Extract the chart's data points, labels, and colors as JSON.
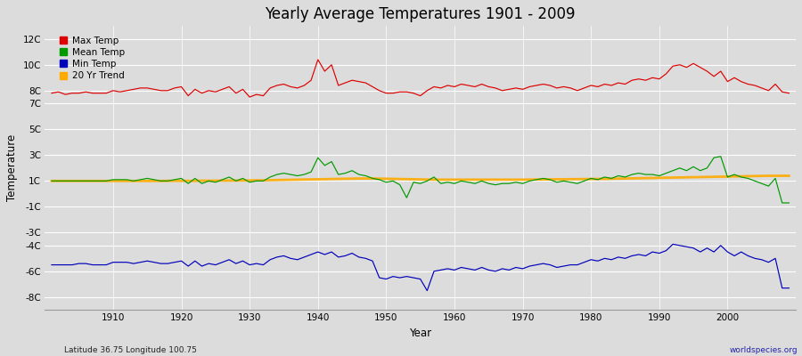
{
  "title": "Yearly Average Temperatures 1901 - 2009",
  "xlabel": "Year",
  "ylabel": "Temperature",
  "x_start": 1901,
  "x_end": 2009,
  "ylim": [
    -9,
    13
  ],
  "xlim": [
    1900,
    2010
  ],
  "ytick_positions": [
    -8,
    -6,
    -4,
    -3,
    -1,
    1,
    3,
    5,
    7,
    8,
    10,
    12
  ],
  "ytick_labels": [
    "-8C",
    "-6C",
    "-4C",
    "-3C",
    "-1C",
    "1C",
    "3C",
    "5C",
    "7C",
    "8C",
    "10C",
    "12C"
  ],
  "xtick_positions": [
    1910,
    1920,
    1930,
    1940,
    1950,
    1960,
    1970,
    1980,
    1990,
    2000
  ],
  "background_color": "#dcdcdc",
  "plot_bg_color": "#dcdcdc",
  "grid_color": "#ffffff",
  "line_colors": {
    "max": "#dd0000",
    "mean": "#009900",
    "min": "#0000bb",
    "trend": "#ffaa00"
  },
  "legend_labels": [
    "Max Temp",
    "Mean Temp",
    "Min Temp",
    "20 Yr Trend"
  ],
  "footer_left": "Latitude 36.75 Longitude 100.75",
  "footer_right": "worldspecies.org",
  "max_temps": [
    7.8,
    7.9,
    7.7,
    7.8,
    7.8,
    7.9,
    7.8,
    7.8,
    7.8,
    8.0,
    7.9,
    8.0,
    8.1,
    8.2,
    8.2,
    8.1,
    8.0,
    8.0,
    8.2,
    8.3,
    7.6,
    8.1,
    7.8,
    8.0,
    7.9,
    8.1,
    8.3,
    7.8,
    8.1,
    7.5,
    7.7,
    7.6,
    8.2,
    8.4,
    8.5,
    8.3,
    8.2,
    8.4,
    8.8,
    10.4,
    9.5,
    10.0,
    8.4,
    8.6,
    8.8,
    8.7,
    8.6,
    8.3,
    8.0,
    7.8,
    7.8,
    7.9,
    7.9,
    7.8,
    7.6,
    8.0,
    8.3,
    8.2,
    8.4,
    8.3,
    8.5,
    8.4,
    8.3,
    8.5,
    8.3,
    8.2,
    8.0,
    8.1,
    8.2,
    8.1,
    8.3,
    8.4,
    8.5,
    8.4,
    8.2,
    8.3,
    8.2,
    8.0,
    8.2,
    8.4,
    8.3,
    8.5,
    8.4,
    8.6,
    8.5,
    8.8,
    8.9,
    8.8,
    9.0,
    8.9,
    9.3,
    9.9,
    10.0,
    9.8,
    10.1,
    9.8,
    9.5,
    9.1,
    9.5,
    8.7,
    9.0,
    8.7,
    8.5,
    8.4,
    8.2,
    8.0,
    8.5,
    7.9,
    7.8
  ],
  "mean_temps": [
    1.0,
    1.0,
    1.0,
    1.0,
    1.0,
    1.0,
    1.0,
    1.0,
    1.0,
    1.1,
    1.1,
    1.1,
    1.0,
    1.1,
    1.2,
    1.1,
    1.0,
    1.0,
    1.1,
    1.2,
    0.8,
    1.2,
    0.8,
    1.0,
    0.9,
    1.1,
    1.3,
    1.0,
    1.2,
    0.9,
    1.0,
    1.0,
    1.3,
    1.5,
    1.6,
    1.5,
    1.4,
    1.5,
    1.7,
    2.8,
    2.2,
    2.5,
    1.5,
    1.6,
    1.8,
    1.5,
    1.4,
    1.2,
    1.1,
    0.9,
    1.0,
    0.7,
    -0.3,
    0.9,
    0.8,
    1.0,
    1.3,
    0.8,
    0.9,
    0.8,
    1.0,
    0.9,
    0.8,
    1.0,
    0.8,
    0.7,
    0.8,
    0.8,
    0.9,
    0.8,
    1.0,
    1.1,
    1.2,
    1.1,
    0.9,
    1.0,
    0.9,
    0.8,
    1.0,
    1.2,
    1.1,
    1.3,
    1.2,
    1.4,
    1.3,
    1.5,
    1.6,
    1.5,
    1.5,
    1.4,
    1.6,
    1.8,
    2.0,
    1.8,
    2.1,
    1.8,
    2.0,
    2.8,
    2.9,
    1.3,
    1.5,
    1.3,
    1.2,
    1.0,
    0.8,
    0.6,
    1.2,
    -0.7,
    -0.7
  ],
  "min_temps": [
    -5.5,
    -5.5,
    -5.5,
    -5.5,
    -5.4,
    -5.4,
    -5.5,
    -5.5,
    -5.5,
    -5.3,
    -5.3,
    -5.3,
    -5.4,
    -5.3,
    -5.2,
    -5.3,
    -5.4,
    -5.4,
    -5.3,
    -5.2,
    -5.6,
    -5.2,
    -5.6,
    -5.4,
    -5.5,
    -5.3,
    -5.1,
    -5.4,
    -5.2,
    -5.5,
    -5.4,
    -5.5,
    -5.1,
    -4.9,
    -4.8,
    -5.0,
    -5.1,
    -4.9,
    -4.7,
    -4.5,
    -4.7,
    -4.5,
    -4.9,
    -4.8,
    -4.6,
    -4.9,
    -5.0,
    -5.2,
    -6.5,
    -6.6,
    -6.4,
    -6.5,
    -6.4,
    -6.5,
    -6.6,
    -7.5,
    -6.0,
    -5.9,
    -5.8,
    -5.9,
    -5.7,
    -5.8,
    -5.9,
    -5.7,
    -5.9,
    -6.0,
    -5.8,
    -5.9,
    -5.7,
    -5.8,
    -5.6,
    -5.5,
    -5.4,
    -5.5,
    -5.7,
    -5.6,
    -5.5,
    -5.5,
    -5.3,
    -5.1,
    -5.2,
    -5.0,
    -5.1,
    -4.9,
    -5.0,
    -4.8,
    -4.7,
    -4.8,
    -4.5,
    -4.6,
    -4.4,
    -3.9,
    -4.0,
    -4.1,
    -4.2,
    -4.5,
    -4.2,
    -4.5,
    -4.0,
    -4.5,
    -4.8,
    -4.5,
    -4.8,
    -5.0,
    -5.1,
    -5.3,
    -5.0,
    -7.3,
    -7.3
  ],
  "trend_temps": [
    1.0,
    1.0,
    1.0,
    1.0,
    1.0,
    1.0,
    1.0,
    1.0,
    1.0,
    1.0,
    1.0,
    1.0,
    1.0,
    1.0,
    1.0,
    1.0,
    1.0,
    1.01,
    1.01,
    1.01,
    1.01,
    1.01,
    1.02,
    1.02,
    1.02,
    1.03,
    1.03,
    1.03,
    1.04,
    1.04,
    1.05,
    1.05,
    1.06,
    1.07,
    1.08,
    1.09,
    1.1,
    1.11,
    1.12,
    1.13,
    1.14,
    1.15,
    1.16,
    1.17,
    1.18,
    1.19,
    1.19,
    1.19,
    1.18,
    1.17,
    1.16,
    1.15,
    1.14,
    1.13,
    1.12,
    1.11,
    1.1,
    1.1,
    1.1,
    1.1,
    1.1,
    1.1,
    1.1,
    1.1,
    1.1,
    1.1,
    1.1,
    1.1,
    1.1,
    1.1,
    1.11,
    1.11,
    1.12,
    1.12,
    1.13,
    1.13,
    1.14,
    1.14,
    1.15,
    1.15,
    1.16,
    1.16,
    1.17,
    1.18,
    1.19,
    1.2,
    1.21,
    1.22,
    1.23,
    1.24,
    1.25,
    1.26,
    1.27,
    1.28,
    1.29,
    1.3,
    1.31,
    1.32,
    1.33,
    1.34,
    1.35,
    1.36,
    1.37,
    1.38,
    1.39,
    1.4,
    1.4,
    1.4,
    1.4
  ]
}
